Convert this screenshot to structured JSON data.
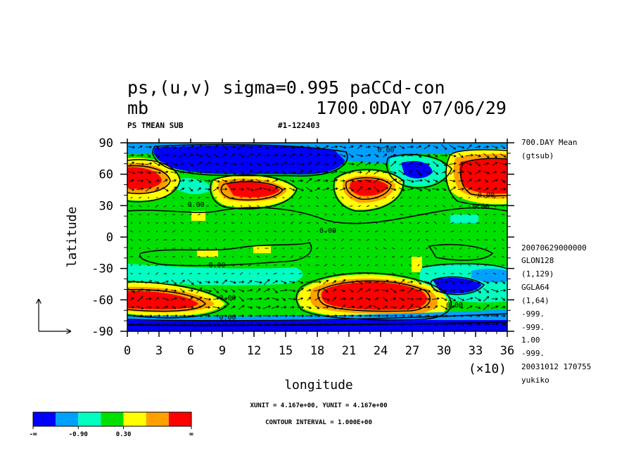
{
  "header": {
    "title_line1": "ps,(u,v) sigma=0.995 paCCd-con",
    "title_line2_left": "mb",
    "title_line2_right": "1700.0DAY 07/06/29",
    "sub_left": "PS TMEAN SUB",
    "sub_right": "#1-122403"
  },
  "right_info": [
    "700.DAY Mean",
    "(gtsub)",
    "20070629000000",
    "GLON128",
    "(1,129)",
    "GGLA64",
    "(1,64)",
    "-999.",
    "-999.",
    "1.00",
    "-999.",
    "20031012 170755",
    "yukiko"
  ],
  "footer": {
    "unit_line": "XUNIT = 4.167e+00, YUNIT = 4.167e+00",
    "contour_line": "CONTOUR INTERVAL = 1.000E+00"
  },
  "colorbar": {
    "colors": [
      "#0000ff",
      "#00a0ff",
      "#00ffc0",
      "#00e000",
      "#ffff00",
      "#ffa000",
      "#ff0000"
    ],
    "labels": [
      "-∞",
      "-0.90",
      "0.30",
      "∞"
    ]
  },
  "chart_data": {
    "type": "heatmap",
    "title": "ps,(u,v) sigma=0.995 paCCd-con",
    "xlabel": "longitude",
    "ylabel": "latitude",
    "x_unit_label": "(×10)",
    "xlim": [
      0,
      36
    ],
    "ylim": [
      -90,
      90
    ],
    "x_ticks": [
      0,
      3,
      6,
      9,
      12,
      15,
      18,
      21,
      24,
      27,
      30,
      33,
      36
    ],
    "y_ticks": [
      90,
      60,
      30,
      0,
      -30,
      -60,
      -90
    ],
    "contour_labels": [
      {
        "text": "0.00",
        "x": 24.5,
        "y": 81
      },
      {
        "text": "0.00",
        "x": 6.5,
        "y": 29
      },
      {
        "text": "0.00",
        "x": 33.5,
        "y": 27
      },
      {
        "text": "0.00",
        "x": 34.0,
        "y": 38
      },
      {
        "text": "0.00",
        "x": 19.0,
        "y": 4
      },
      {
        "text": "0.00",
        "x": 8.5,
        "y": -29
      },
      {
        "text": "0.00",
        "x": 9.5,
        "y": -60
      },
      {
        "text": "0.00",
        "x": 9.5,
        "y": -79
      },
      {
        "text": "0.00",
        "x": 31.0,
        "y": -67
      }
    ]
  }
}
